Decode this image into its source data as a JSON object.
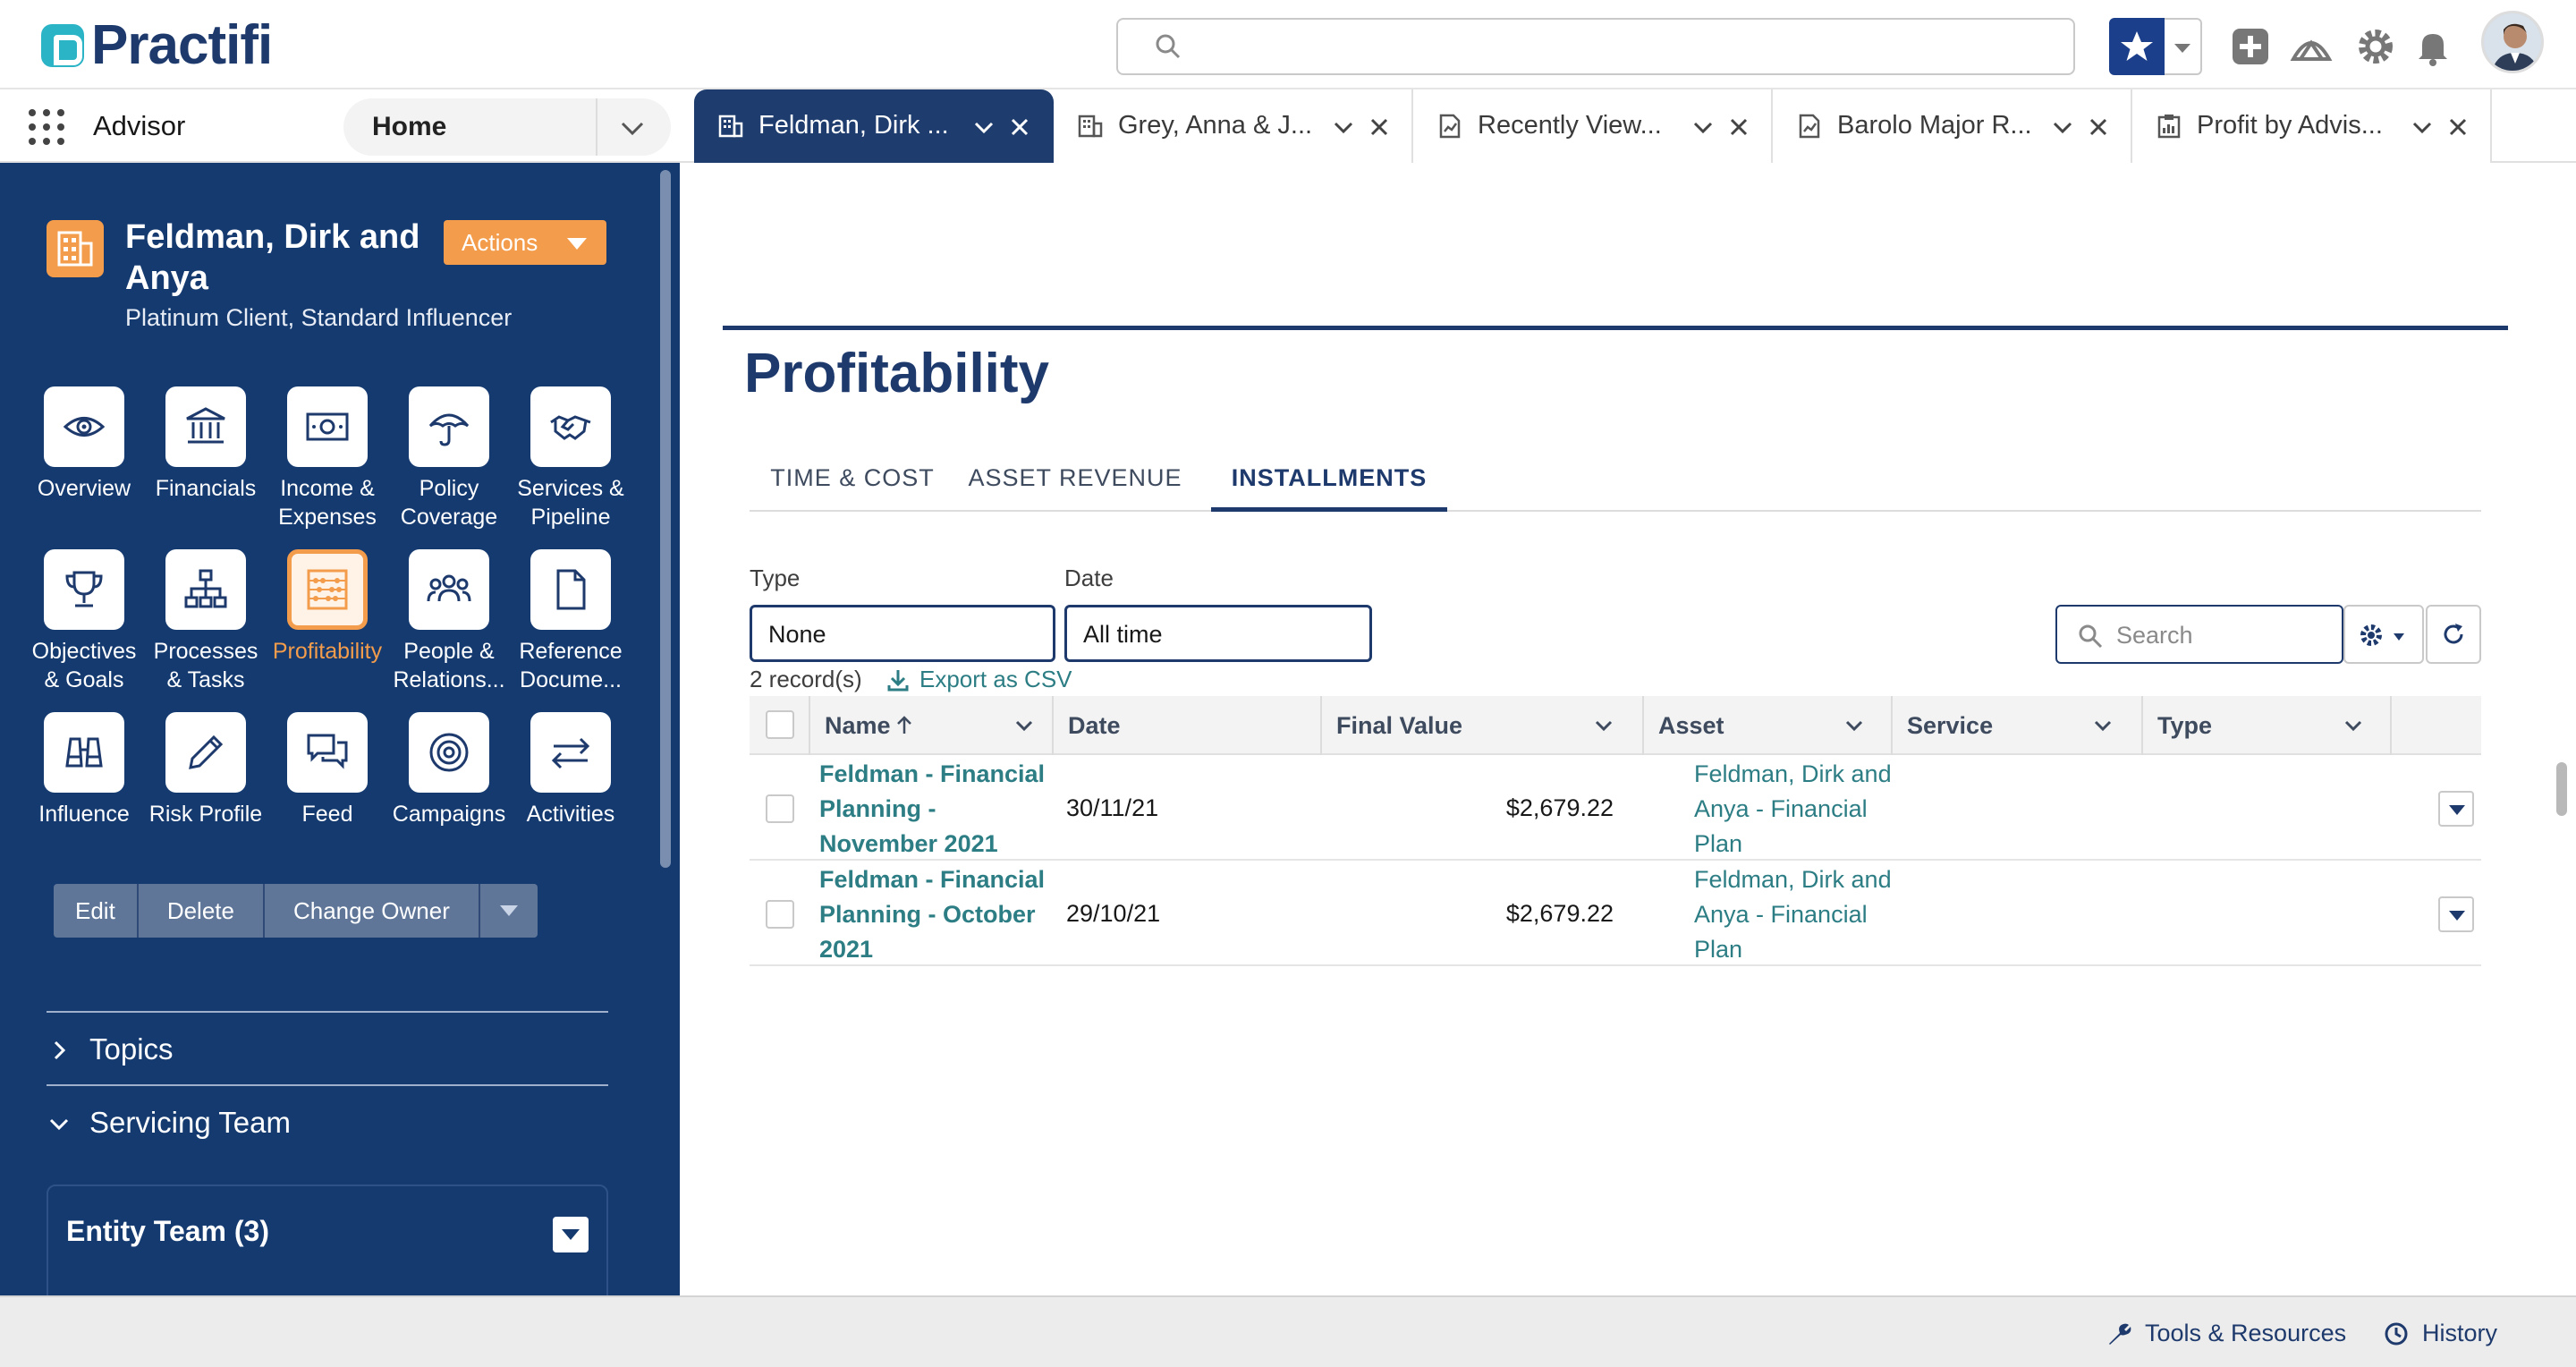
{
  "header": {
    "logo_text": "Practifi",
    "search_placeholder": "",
    "icons": [
      "search-icon",
      "favorites-star-icon",
      "chevron-down-icon",
      "add-icon",
      "trailhead-icon",
      "setup-gear-icon",
      "notification-bell-icon"
    ]
  },
  "nav": {
    "app_name": "Advisor",
    "home_label": "Home",
    "tabs": [
      {
        "label": "Feldman, Dirk ...",
        "icon": "account-icon",
        "active": true
      },
      {
        "label": "Grey, Anna & J...",
        "icon": "account-icon",
        "active": false
      },
      {
        "label": "Recently View...",
        "icon": "report-icon",
        "active": false
      },
      {
        "label": "Barolo Major R...",
        "icon": "report-icon",
        "active": false
      },
      {
        "label": "Profit by Advis...",
        "icon": "dashboard-icon",
        "active": false
      }
    ]
  },
  "record": {
    "title": "Feldman, Dirk and Anya",
    "subtitle": "Platinum Client, Standard Influencer",
    "actions_label": "Actions",
    "tiles": [
      {
        "label": "Overview",
        "icon": "eye-icon"
      },
      {
        "label": "Financials",
        "icon": "bank-icon"
      },
      {
        "label": "Income & Expenses",
        "icon": "money-icon"
      },
      {
        "label": "Policy Coverage",
        "icon": "umbrella-icon"
      },
      {
        "label": "Services & Pipeline",
        "icon": "handshake-icon"
      },
      {
        "label": "Objectives & Goals",
        "icon": "trophy-icon"
      },
      {
        "label": "Processes & Tasks",
        "icon": "hierarchy-icon"
      },
      {
        "label": "Profitability",
        "icon": "abacus-icon",
        "active": true
      },
      {
        "label": "People & Relations...",
        "icon": "people-icon"
      },
      {
        "label": "Reference Docume...",
        "icon": "document-icon"
      },
      {
        "label": "Influence",
        "icon": "binoculars-icon"
      },
      {
        "label": "Risk Profile",
        "icon": "pencil-icon"
      },
      {
        "label": "Feed",
        "icon": "chat-icon"
      },
      {
        "label": "Campaigns",
        "icon": "target-icon"
      },
      {
        "label": "Activities",
        "icon": "swap-arrows-icon"
      }
    ],
    "buttons": {
      "edit": "Edit",
      "delete": "Delete",
      "change_owner": "Change Owner"
    },
    "sections": {
      "topics": "Topics",
      "servicing_team": "Servicing Team"
    },
    "team_card_title": "Entity Team (3)"
  },
  "main": {
    "page_title": "Profitability",
    "sub_tabs": [
      {
        "label": "TIME & COST",
        "active": false
      },
      {
        "label": "ASSET REVENUE",
        "active": false
      },
      {
        "label": "INSTALLMENTS",
        "active": true
      }
    ],
    "filters": {
      "type_label": "Type",
      "type_value": "None",
      "date_label": "Date",
      "date_value": "All time"
    },
    "search_placeholder": "Search",
    "record_count": "2 record(s)",
    "export_label": "Export as CSV",
    "columns": [
      "Name",
      "Date",
      "Final Value",
      "Asset",
      "Service",
      "Type"
    ],
    "rows": [
      {
        "name": "Feldman - Financial Planning - November 2021",
        "date": "30/11/21",
        "final_value": "$2,679.22",
        "asset": "",
        "service": "Feldman, Dirk and Anya - Financial Plan",
        "type": ""
      },
      {
        "name": "Feldman - Financial Planning - October 2021",
        "date": "29/10/21",
        "final_value": "$2,679.22",
        "asset": "",
        "service": "Feldman, Dirk and Anya - Financial Plan",
        "type": ""
      }
    ]
  },
  "utility": {
    "tools": "Tools & Resources",
    "history": "History"
  },
  "colors": {
    "navy": "#1e3a6d",
    "panel": "#143a70",
    "accent_orange": "#f39c4b",
    "link_teal": "#2c7d84"
  }
}
